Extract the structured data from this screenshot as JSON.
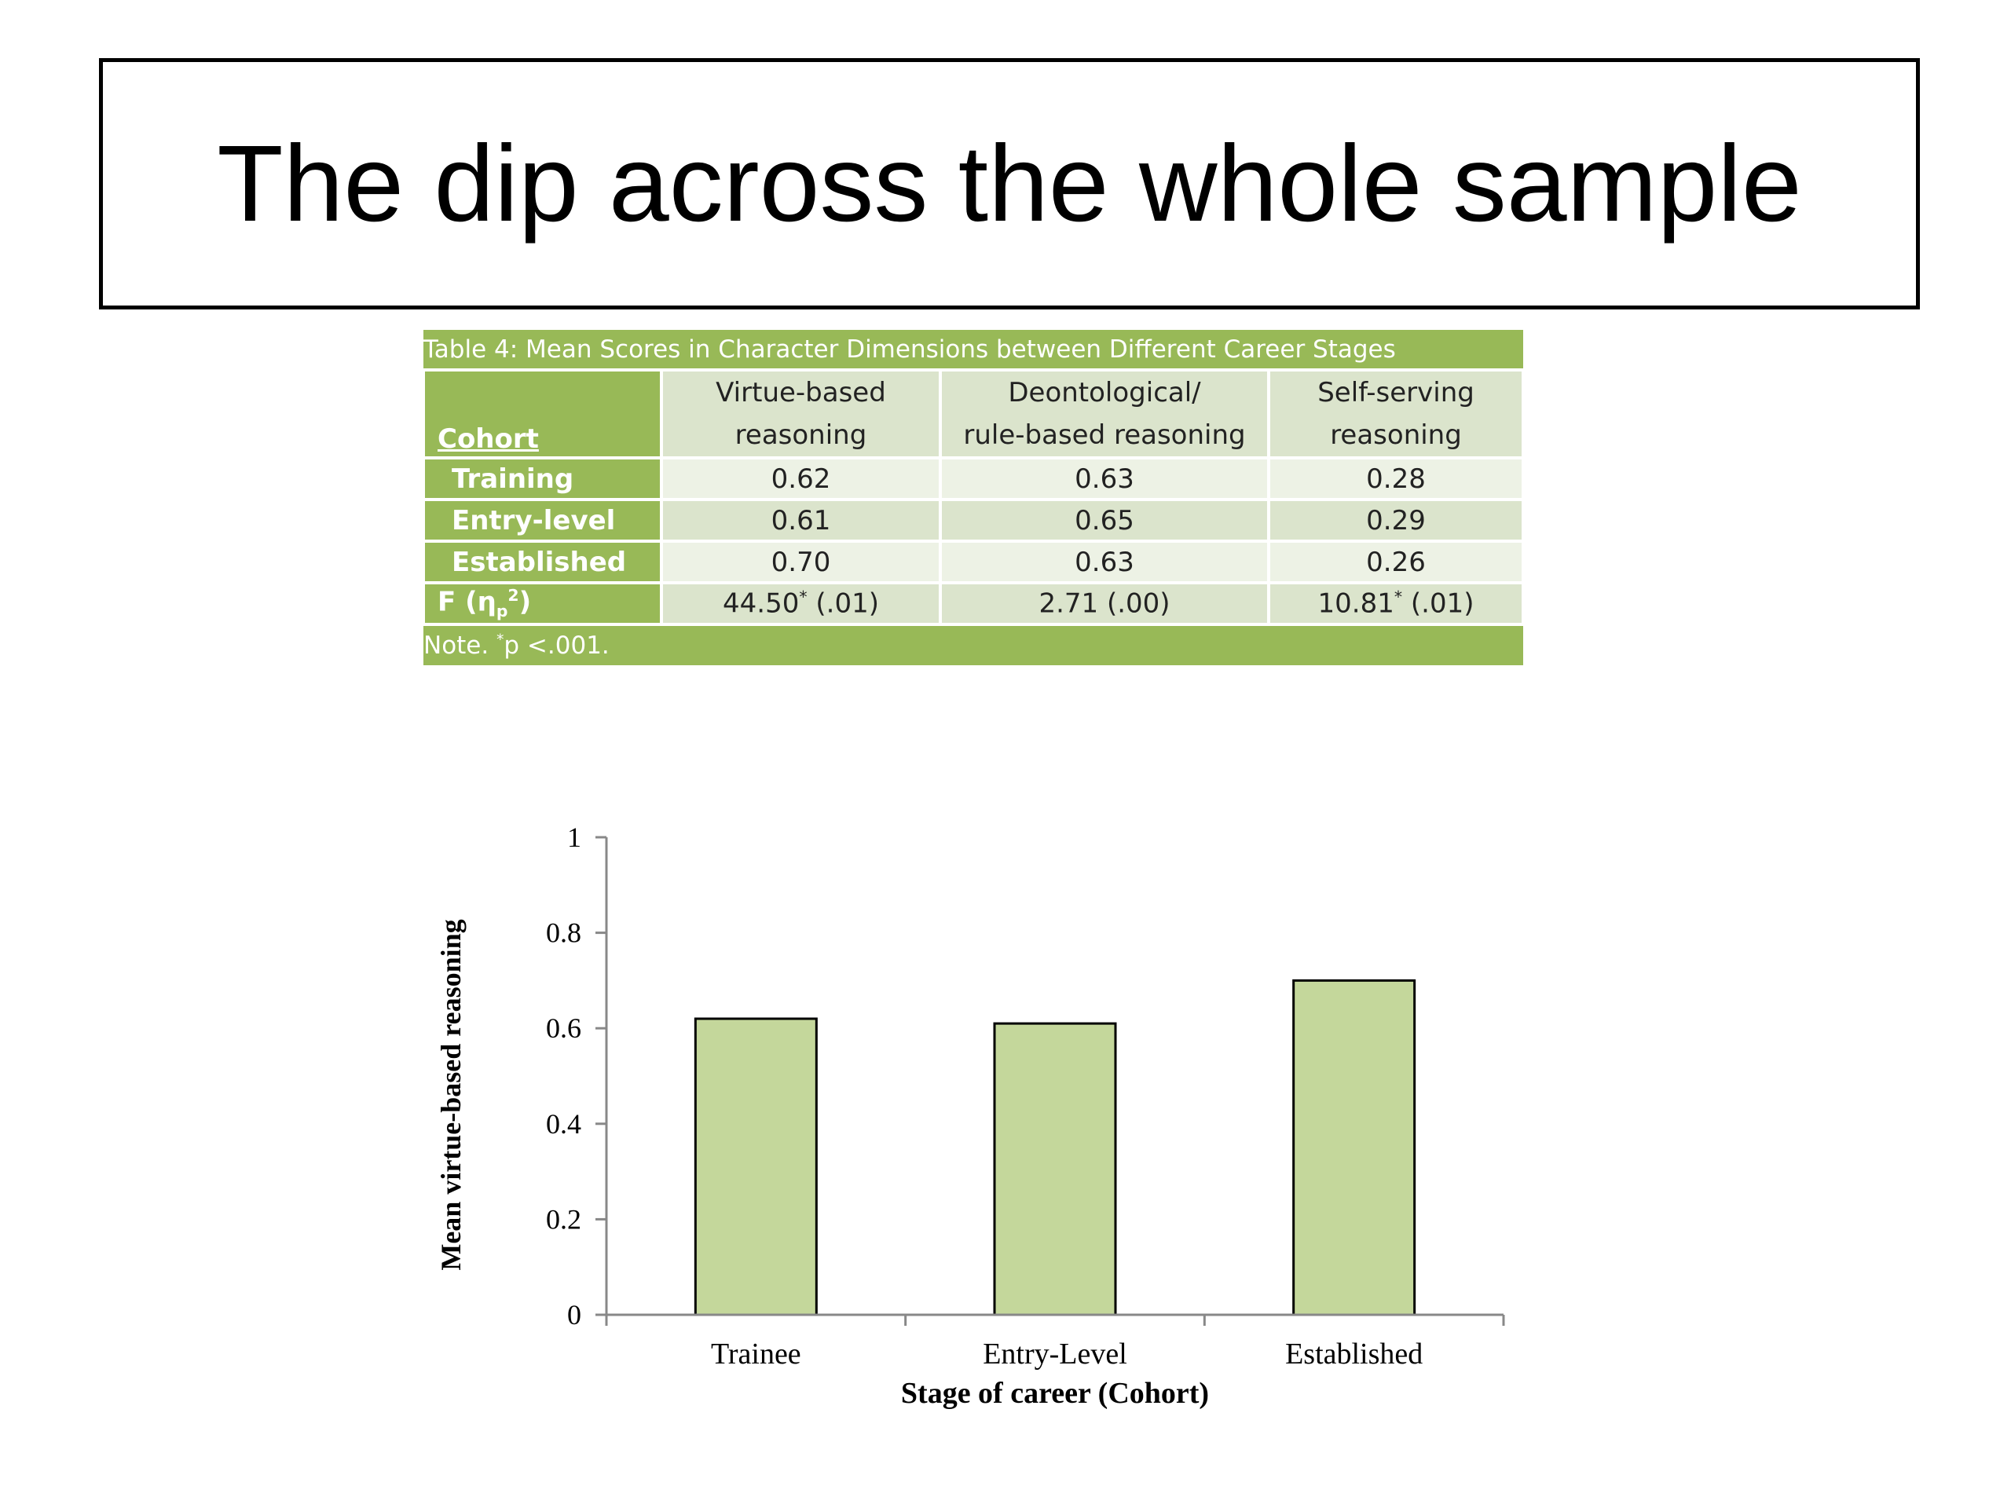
{
  "slide": {
    "title": "The dip across the whole sample"
  },
  "table": {
    "caption": "Table 4:  Mean Scores in Character Dimensions between Different Career Stages",
    "cohort_header": "Cohort",
    "columns": [
      {
        "line1": "Virtue-based",
        "line2": "reasoning"
      },
      {
        "line1": "Deontological/",
        "line2": "rule-based reasoning"
      },
      {
        "line1": "Self-serving",
        "line2": "reasoning"
      }
    ],
    "rows": [
      {
        "label": "Training",
        "values": [
          "0.62",
          "0.63",
          "0.28"
        ]
      },
      {
        "label": "Entry-level",
        "values": [
          "0.61",
          "0.65",
          "0.29"
        ]
      },
      {
        "label": "Established",
        "values": [
          "0.70",
          "0.63",
          "0.26"
        ]
      }
    ],
    "f_row": {
      "label_main": "F (η",
      "label_sub": "p",
      "label_sup": "2",
      "label_end": ")",
      "cells": [
        {
          "main": "44.50",
          "sup": "*",
          "rest": " (.01)"
        },
        {
          "main": "2.71 (.00)",
          "sup": "",
          "rest": ""
        },
        {
          "main": "10.81",
          "sup": "*",
          "rest": " (.01)"
        }
      ]
    },
    "note": {
      "prefix": "Note. ",
      "sup": "*",
      "text": "p <.001."
    }
  },
  "chart_data": {
    "type": "bar",
    "categories": [
      "Trainee",
      "Entry-Level",
      "Established"
    ],
    "values": [
      0.62,
      0.61,
      0.7
    ],
    "title": "",
    "xlabel": "Stage of career (Cohort)",
    "ylabel": "Mean virtue-based reasoning",
    "ylim": [
      0,
      1
    ],
    "yticks": [
      "0",
      "0.2",
      "0.4",
      "0.6",
      "0.8",
      "1"
    ],
    "bar_color": "#c4d79b",
    "bar_stroke": "#000000",
    "grid": false
  }
}
